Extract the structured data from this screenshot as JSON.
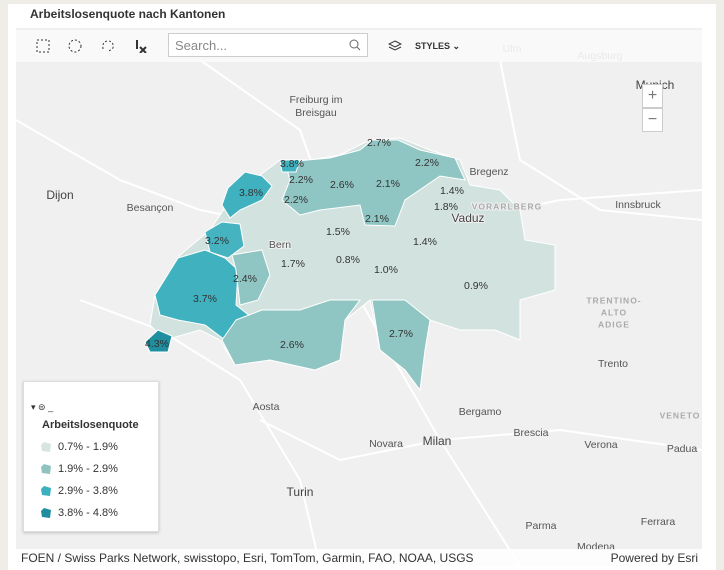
{
  "header": {
    "title": "Arbeitslosenquote nach Kantonen"
  },
  "toolbar": {
    "search_placeholder": "Search...",
    "styles": "STYLES"
  },
  "zoom": {
    "in": "+",
    "out": "−"
  },
  "map": {
    "place_labels": [
      "Freiburg im",
      "Breisgau",
      "Dijon",
      "Besançon",
      "Bern",
      "Aosta",
      "Turin",
      "Novara",
      "Milan",
      "Bergamo",
      "Brescia",
      "Verona",
      "Padua",
      "Trento",
      "Innsbruck",
      "Munich",
      "Bregenz",
      "Vaduz",
      "VORARLBERG",
      "TRENTINO-",
      "ALTO",
      "ADIGE",
      "VENETO",
      "Parma",
      "Ferrara",
      "Modena",
      "Ulm",
      "Augsburg"
    ],
    "canton_labels": [
      "2.7%",
      "3.8%",
      "2.2%",
      "2.2%",
      "2.6%",
      "2.1%",
      "3.8%",
      "1.4%",
      "2.2%",
      "1.8%",
      "2.1%",
      "1.5%",
      "3.2%",
      "1.4%",
      "1.7%",
      "0.8%",
      "1.0%",
      "2.4%",
      "0.9%",
      "3.7%",
      "2.7%",
      "2.6%",
      "4.3%"
    ]
  },
  "legend": {
    "layer": "_",
    "title": "Arbeitslosenquote",
    "classes": [
      "0.7% - 1.9%",
      "1.9% - 2.9%",
      "2.9% - 3.8%",
      "3.8% - 4.8%"
    ]
  },
  "footer": {
    "attribution": "FOEN / Swiss Parks Network, swisstopo, Esri, TomTom, Garmin, FAO, NOAA, USGS",
    "powered_by": "Powered by Esri"
  }
}
